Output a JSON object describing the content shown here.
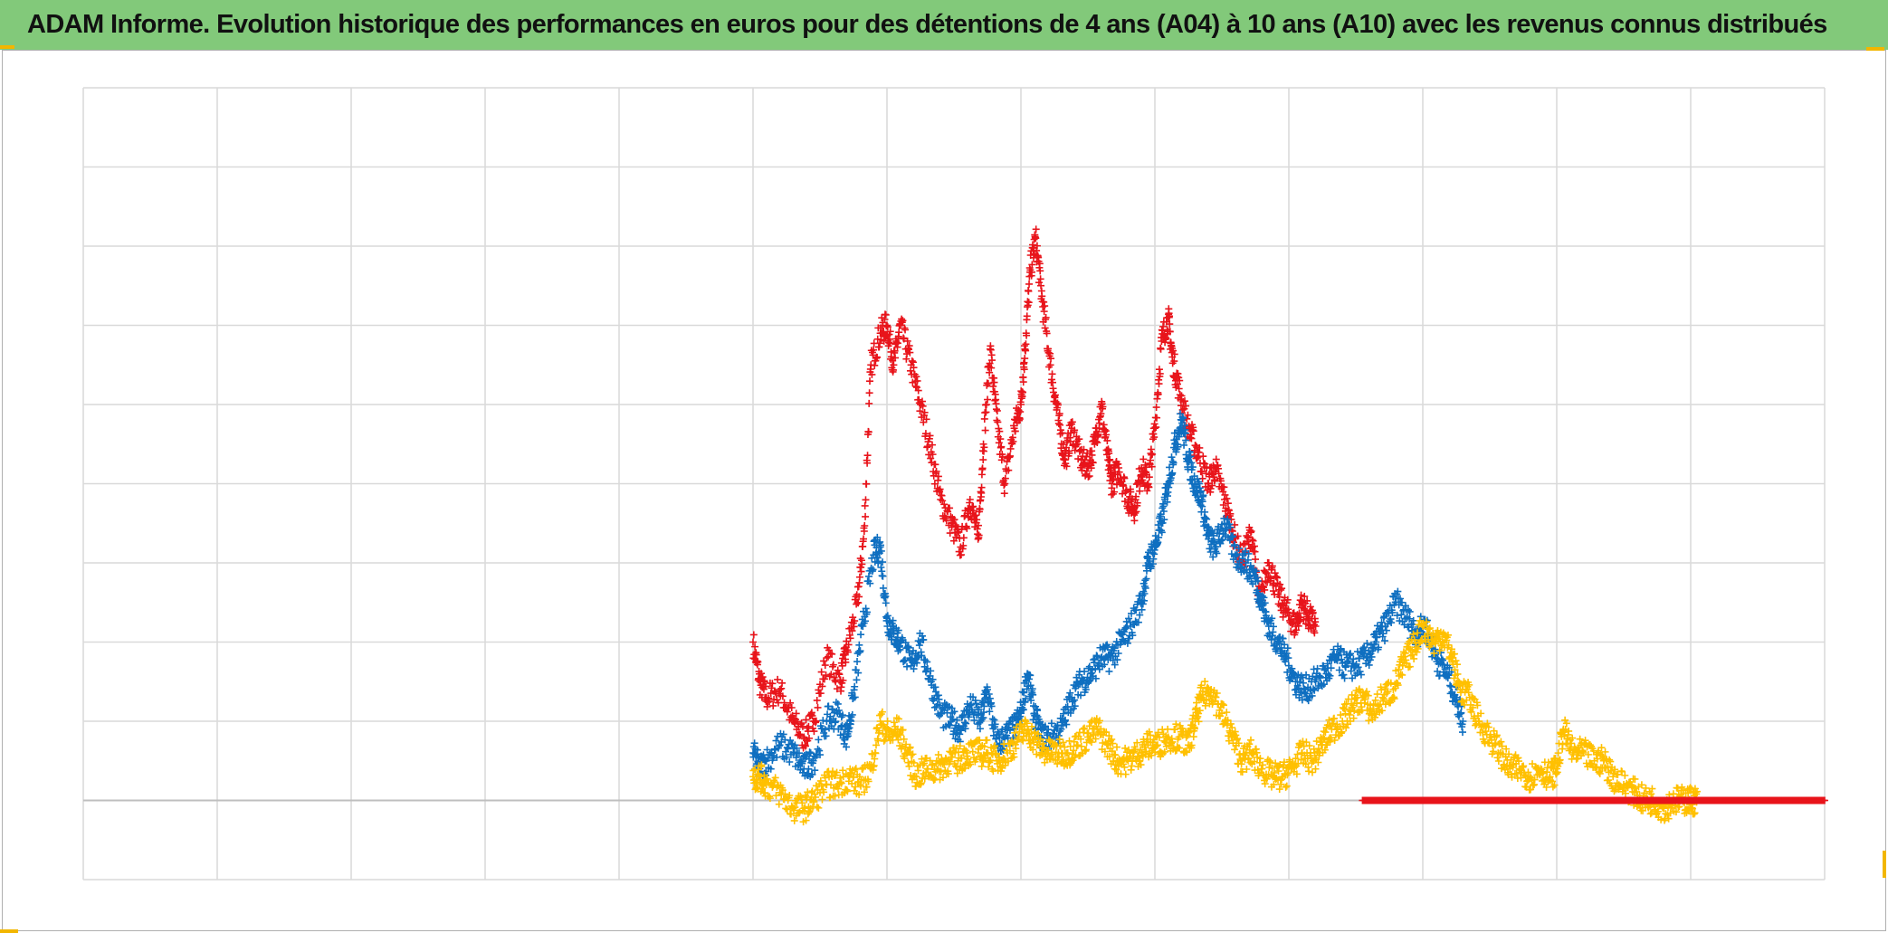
{
  "title": "ADAM Informe. Evolution historique des performances en euros pour des détentions de 4 ans (A04) à 10 ans (A10) avec les revenus connus distribués",
  "colors": {
    "title_background": "#82c97a",
    "corner_marks": "#f2b600",
    "grid": "#d9d9d9",
    "zero_line": "#bfbfbf"
  },
  "chart_data": {
    "type": "scatter",
    "marker": "plus",
    "grid": true,
    "legend": "none",
    "xlim": [
      0,
      13
    ],
    "ylim": [
      -1,
      9
    ],
    "x_gridlines": 13,
    "y_gridlines": 10,
    "series": [
      {
        "color": "#e8141b",
        "points": [
          [
            5.0,
            2.0
          ],
          [
            5.05,
            1.5
          ],
          [
            5.1,
            1.3
          ],
          [
            5.2,
            1.4
          ],
          [
            5.3,
            1.0
          ],
          [
            5.38,
            0.8
          ],
          [
            5.45,
            1.0
          ],
          [
            5.55,
            1.8
          ],
          [
            5.65,
            1.5
          ],
          [
            5.7,
            1.9
          ],
          [
            5.78,
            2.5
          ],
          [
            5.83,
            3.4
          ],
          [
            5.88,
            5.5
          ],
          [
            5.95,
            5.9
          ],
          [
            6.0,
            6.0
          ],
          [
            6.05,
            5.5
          ],
          [
            6.1,
            6.0
          ],
          [
            6.18,
            5.5
          ],
          [
            6.25,
            5.0
          ],
          [
            6.33,
            4.4
          ],
          [
            6.4,
            3.8
          ],
          [
            6.48,
            3.5
          ],
          [
            6.55,
            3.2
          ],
          [
            6.62,
            3.8
          ],
          [
            6.68,
            3.3
          ],
          [
            6.72,
            4.5
          ],
          [
            6.77,
            5.7
          ],
          [
            6.82,
            4.8
          ],
          [
            6.88,
            4.0
          ],
          [
            6.95,
            4.7
          ],
          [
            7.0,
            5.0
          ],
          [
            7.03,
            5.7
          ],
          [
            7.07,
            6.7
          ],
          [
            7.11,
            7.1
          ],
          [
            7.16,
            6.3
          ],
          [
            7.22,
            5.5
          ],
          [
            7.28,
            4.8
          ],
          [
            7.33,
            4.3
          ],
          [
            7.38,
            4.7
          ],
          [
            7.45,
            4.3
          ],
          [
            7.5,
            4.2
          ],
          [
            7.55,
            4.5
          ],
          [
            7.6,
            5.0
          ],
          [
            7.65,
            4.3
          ],
          [
            7.68,
            4.0
          ],
          [
            7.73,
            4.2
          ],
          [
            7.8,
            3.8
          ],
          [
            7.85,
            3.7
          ],
          [
            7.9,
            4.2
          ],
          [
            7.95,
            4.0
          ],
          [
            8.0,
            4.7
          ],
          [
            8.05,
            5.8
          ],
          [
            8.1,
            6.1
          ],
          [
            8.13,
            5.6
          ],
          [
            8.18,
            5.2
          ],
          [
            8.25,
            4.7
          ],
          [
            8.32,
            4.4
          ],
          [
            8.4,
            4.0
          ],
          [
            8.45,
            4.2
          ],
          [
            8.52,
            3.8
          ],
          [
            8.58,
            3.4
          ],
          [
            8.65,
            3.0
          ],
          [
            8.72,
            3.4
          ],
          [
            8.78,
            2.5
          ],
          [
            8.85,
            3.0
          ],
          [
            8.92,
            2.6
          ],
          [
            8.98,
            2.4
          ],
          [
            9.05,
            2.2
          ],
          [
            9.1,
            2.5
          ],
          [
            9.15,
            2.3
          ],
          [
            9.2,
            2.2
          ]
        ]
      },
      {
        "color": "#0f6fc0",
        "points": [
          [
            5.0,
            0.6
          ],
          [
            5.05,
            0.4
          ],
          [
            5.1,
            0.5
          ],
          [
            5.2,
            0.7
          ],
          [
            5.3,
            0.6
          ],
          [
            5.38,
            0.4
          ],
          [
            5.45,
            0.5
          ],
          [
            5.55,
            1.0
          ],
          [
            5.63,
            1.1
          ],
          [
            5.7,
            0.8
          ],
          [
            5.75,
            1.3
          ],
          [
            5.82,
            2.2
          ],
          [
            5.9,
            3.1
          ],
          [
            5.95,
            3.2
          ],
          [
            6.0,
            2.3
          ],
          [
            6.05,
            2.1
          ],
          [
            6.1,
            2.0
          ],
          [
            6.18,
            1.7
          ],
          [
            6.25,
            2.0
          ],
          [
            6.33,
            1.5
          ],
          [
            6.4,
            1.1
          ],
          [
            6.48,
            1.0
          ],
          [
            6.55,
            0.9
          ],
          [
            6.62,
            1.2
          ],
          [
            6.7,
            1.0
          ],
          [
            6.75,
            1.4
          ],
          [
            6.82,
            0.7
          ],
          [
            6.88,
            0.8
          ],
          [
            6.95,
            0.9
          ],
          [
            7.0,
            1.1
          ],
          [
            7.05,
            1.6
          ],
          [
            7.1,
            1.1
          ],
          [
            7.15,
            0.8
          ],
          [
            7.22,
            0.8
          ],
          [
            7.3,
            0.9
          ],
          [
            7.38,
            1.3
          ],
          [
            7.45,
            1.5
          ],
          [
            7.52,
            1.6
          ],
          [
            7.6,
            1.8
          ],
          [
            7.67,
            1.8
          ],
          [
            7.75,
            2.0
          ],
          [
            7.82,
            2.2
          ],
          [
            7.9,
            2.5
          ],
          [
            7.95,
            3.0
          ],
          [
            8.0,
            3.2
          ],
          [
            8.05,
            3.5
          ],
          [
            8.1,
            4.0
          ],
          [
            8.15,
            4.5
          ],
          [
            8.2,
            4.8
          ],
          [
            8.25,
            4.3
          ],
          [
            8.3,
            4.0
          ],
          [
            8.35,
            3.8
          ],
          [
            8.4,
            3.3
          ],
          [
            8.45,
            3.2
          ],
          [
            8.52,
            3.5
          ],
          [
            8.6,
            3.1
          ],
          [
            8.68,
            3.0
          ],
          [
            8.75,
            2.8
          ],
          [
            8.8,
            2.5
          ],
          [
            8.85,
            2.2
          ],
          [
            8.92,
            2.0
          ],
          [
            8.98,
            1.8
          ],
          [
            9.05,
            1.5
          ],
          [
            9.12,
            1.4
          ],
          [
            9.2,
            1.5
          ],
          [
            9.28,
            1.6
          ],
          [
            9.35,
            1.8
          ],
          [
            9.42,
            1.7
          ],
          [
            9.5,
            1.7
          ],
          [
            9.58,
            1.8
          ],
          [
            9.65,
            2.0
          ],
          [
            9.72,
            2.2
          ],
          [
            9.8,
            2.5
          ],
          [
            9.88,
            2.3
          ],
          [
            9.95,
            2.1
          ],
          [
            10.02,
            2.2
          ],
          [
            10.1,
            1.8
          ],
          [
            10.18,
            1.6
          ],
          [
            10.25,
            1.3
          ],
          [
            10.3,
            1.0
          ]
        ]
      },
      {
        "color": "#ffc000",
        "points": [
          [
            5.0,
            0.3
          ],
          [
            5.05,
            0.3
          ],
          [
            5.1,
            0.2
          ],
          [
            5.2,
            0.1
          ],
          [
            5.3,
            -0.1
          ],
          [
            5.38,
            -0.1
          ],
          [
            5.45,
            0.0
          ],
          [
            5.55,
            0.2
          ],
          [
            5.63,
            0.2
          ],
          [
            5.72,
            0.3
          ],
          [
            5.8,
            0.2
          ],
          [
            5.88,
            0.4
          ],
          [
            5.95,
            1.0
          ],
          [
            6.02,
            0.8
          ],
          [
            6.08,
            0.9
          ],
          [
            6.15,
            0.6
          ],
          [
            6.22,
            0.3
          ],
          [
            6.3,
            0.4
          ],
          [
            6.38,
            0.4
          ],
          [
            6.45,
            0.5
          ],
          [
            6.53,
            0.5
          ],
          [
            6.6,
            0.6
          ],
          [
            6.68,
            0.6
          ],
          [
            6.75,
            0.6
          ],
          [
            6.82,
            0.5
          ],
          [
            6.9,
            0.6
          ],
          [
            6.98,
            0.8
          ],
          [
            7.05,
            0.9
          ],
          [
            7.12,
            0.7
          ],
          [
            7.2,
            0.6
          ],
          [
            7.28,
            0.6
          ],
          [
            7.35,
            0.6
          ],
          [
            7.42,
            0.7
          ],
          [
            7.5,
            0.8
          ],
          [
            7.57,
            0.9
          ],
          [
            7.65,
            0.7
          ],
          [
            7.72,
            0.5
          ],
          [
            7.8,
            0.5
          ],
          [
            7.88,
            0.6
          ],
          [
            7.95,
            0.7
          ],
          [
            8.02,
            0.7
          ],
          [
            8.1,
            0.8
          ],
          [
            8.18,
            0.8
          ],
          [
            8.25,
            0.7
          ],
          [
            8.3,
            1.0
          ],
          [
            8.35,
            1.3
          ],
          [
            8.42,
            1.4
          ],
          [
            8.5,
            1.1
          ],
          [
            8.58,
            0.8
          ],
          [
            8.65,
            0.5
          ],
          [
            8.72,
            0.6
          ],
          [
            8.8,
            0.4
          ],
          [
            8.88,
            0.3
          ],
          [
            8.95,
            0.3
          ],
          [
            9.02,
            0.4
          ],
          [
            9.1,
            0.6
          ],
          [
            9.18,
            0.5
          ],
          [
            9.25,
            0.7
          ],
          [
            9.32,
            0.9
          ],
          [
            9.4,
            1.0
          ],
          [
            9.48,
            1.2
          ],
          [
            9.55,
            1.3
          ],
          [
            9.62,
            1.1
          ],
          [
            9.7,
            1.3
          ],
          [
            9.78,
            1.4
          ],
          [
            9.85,
            1.7
          ],
          [
            9.92,
            1.9
          ],
          [
            10.0,
            2.2
          ],
          [
            10.08,
            2.0
          ],
          [
            10.15,
            2.1
          ],
          [
            10.22,
            1.8
          ],
          [
            10.28,
            1.4
          ],
          [
            10.35,
            1.3
          ],
          [
            10.42,
            1.0
          ],
          [
            10.5,
            0.8
          ],
          [
            10.58,
            0.6
          ],
          [
            10.65,
            0.4
          ],
          [
            10.72,
            0.4
          ],
          [
            10.8,
            0.3
          ],
          [
            10.88,
            0.4
          ],
          [
            10.95,
            0.3
          ],
          [
            11.0,
            0.4
          ],
          [
            11.05,
            0.9
          ],
          [
            11.12,
            0.6
          ],
          [
            11.2,
            0.6
          ],
          [
            11.28,
            0.5
          ],
          [
            11.35,
            0.5
          ],
          [
            11.42,
            0.3
          ],
          [
            11.5,
            0.2
          ],
          [
            11.58,
            0.1
          ],
          [
            11.65,
            0.0
          ],
          [
            11.72,
            0.0
          ],
          [
            11.8,
            -0.1
          ],
          [
            11.88,
            0.0
          ],
          [
            11.95,
            0.0
          ],
          [
            12.0,
            0.0
          ],
          [
            12.05,
            0.0
          ]
        ]
      },
      {
        "color": "#e8141b",
        "points": [
          [
            9.55,
            0.0
          ],
          [
            9.8,
            0.0
          ],
          [
            10.05,
            0.0
          ],
          [
            10.3,
            0.0
          ],
          [
            10.55,
            0.0
          ],
          [
            10.8,
            0.0
          ],
          [
            11.05,
            0.0
          ],
          [
            11.3,
            0.0
          ],
          [
            11.55,
            0.0
          ],
          [
            11.8,
            0.0
          ],
          [
            12.05,
            0.0
          ],
          [
            12.3,
            0.0
          ],
          [
            12.55,
            0.0
          ],
          [
            12.8,
            0.0
          ],
          [
            13.0,
            0.0
          ]
        ]
      }
    ]
  }
}
